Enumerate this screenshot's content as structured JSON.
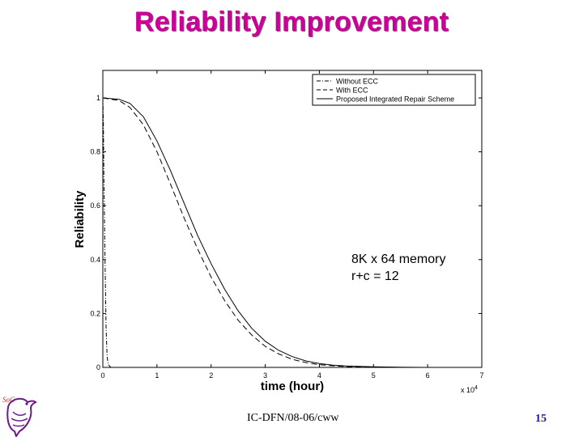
{
  "slide": {
    "title": "Reliability Improvement",
    "footer": "IC-DFN/08-06/cww",
    "page_number": "15",
    "logo_text": "SoC"
  },
  "annotation": {
    "line1": "8K x 64 memory",
    "line2": "r+c = 12"
  },
  "colors": {
    "title": "#cc0099",
    "page_number": "#1a1a99",
    "curves": "#000000"
  },
  "chart_data": {
    "type": "line",
    "title": "",
    "xlabel": "time (hour)",
    "ylabel": "Reliability",
    "x_scale_label": "x 10^4",
    "x_multiplier_base": "x 10",
    "x_multiplier_exp": "4",
    "xlim": [
      0,
      7
    ],
    "ylim": [
      0,
      1
    ],
    "xticks": [
      "0",
      "1",
      "2",
      "3",
      "4",
      "5",
      "6",
      "7"
    ],
    "yticks": [
      "0",
      "0.2",
      "0.4",
      "0.6",
      "0.8",
      "1"
    ],
    "grid": false,
    "legend_position": "top-right",
    "series": [
      {
        "name": "Without ECC",
        "style": "dash-dot",
        "x": [
          0,
          0.01,
          0.02,
          0.04,
          0.06,
          0.08,
          0.1,
          0.15,
          0.2,
          7
        ],
        "y": [
          1,
          0.9,
          0.7,
          0.4,
          0.15,
          0.04,
          0.01,
          0,
          0,
          0
        ]
      },
      {
        "name": "With ECC",
        "style": "dashed",
        "x": [
          0,
          0.3,
          0.5,
          0.75,
          1,
          1.25,
          1.5,
          1.75,
          2,
          2.25,
          2.5,
          2.75,
          3,
          3.25,
          3.5,
          3.75,
          4,
          4.25,
          4.5,
          5,
          5.5,
          6,
          7
        ],
        "y": [
          1,
          0.99,
          0.965,
          0.9,
          0.8,
          0.68,
          0.555,
          0.44,
          0.335,
          0.248,
          0.175,
          0.12,
          0.078,
          0.05,
          0.03,
          0.018,
          0.01,
          0.006,
          0.003,
          0.001,
          0,
          0,
          0
        ]
      },
      {
        "name": "Proposed Integrated Repair Scheme",
        "style": "solid",
        "x": [
          0,
          0.3,
          0.5,
          0.75,
          1,
          1.25,
          1.5,
          1.75,
          2,
          2.25,
          2.5,
          2.75,
          3,
          3.25,
          3.5,
          3.75,
          4,
          4.25,
          4.5,
          5,
          5.5,
          6,
          7
        ],
        "y": [
          1,
          0.995,
          0.98,
          0.93,
          0.84,
          0.73,
          0.61,
          0.49,
          0.385,
          0.29,
          0.21,
          0.145,
          0.097,
          0.063,
          0.04,
          0.024,
          0.014,
          0.008,
          0.005,
          0.002,
          0.001,
          0,
          0
        ]
      }
    ]
  }
}
